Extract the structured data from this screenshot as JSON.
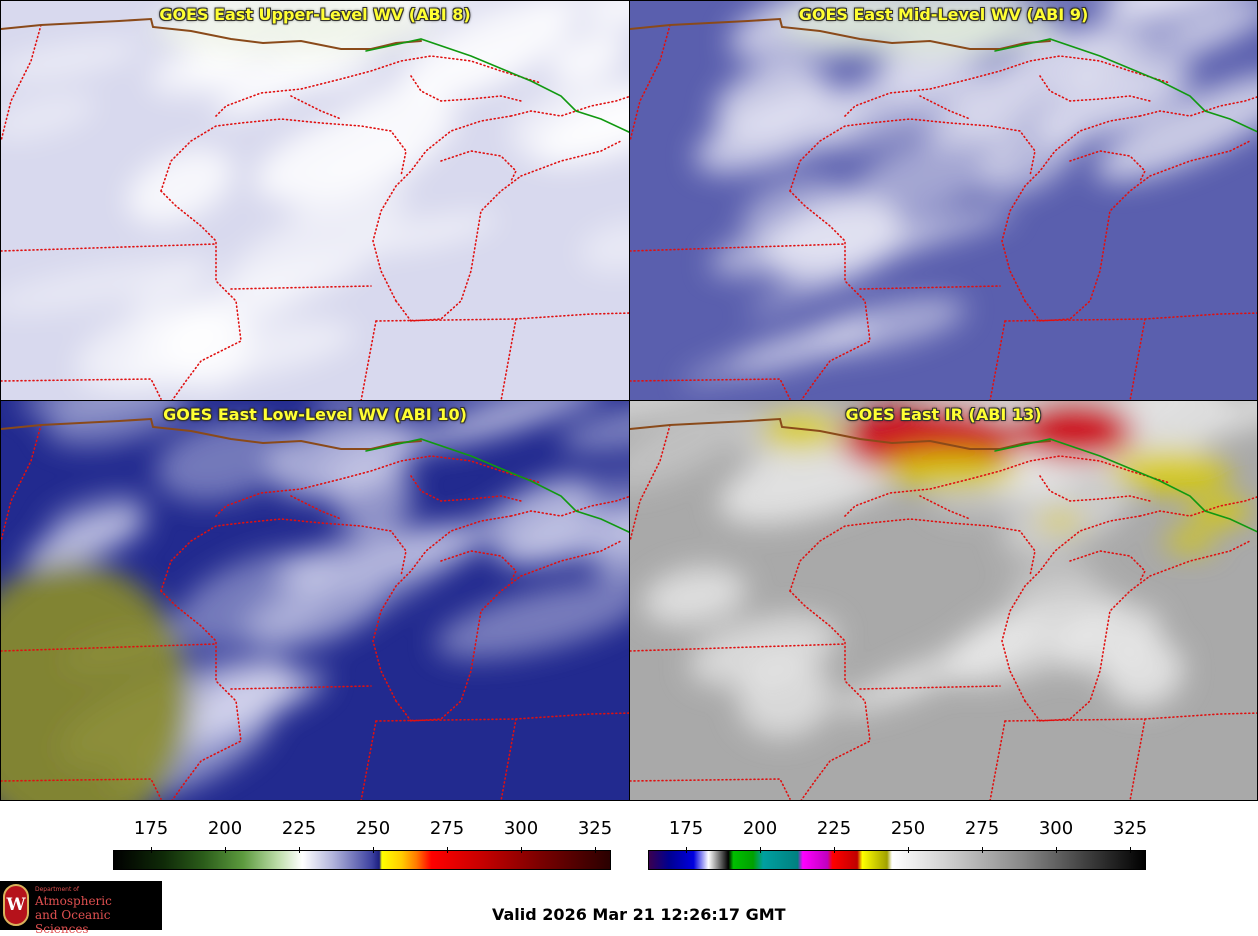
{
  "panels": [
    {
      "title": "GOES East Upper-Level WV (ABI 8)",
      "base": "#d8d9ee",
      "cloud": "#ffffff",
      "accent": "#eef3e8"
    },
    {
      "title": "GOES East Mid-Level WV (ABI 9)",
      "base": "#5a5fae",
      "cloud": "#e8e8f4",
      "accent": "#dfe9d8"
    },
    {
      "title": "GOES East Low-Level WV (ABI 10)",
      "base": "#222a8f",
      "cloud": "#d8d9ef",
      "accent": "#8c8e2a"
    },
    {
      "title": "GOES East IR (ABI 13)",
      "base": "#a9a9a9",
      "cloud": "#ececec",
      "accent": "#d9cc00"
    }
  ],
  "colorbar_wv": {
    "ticks": [
      "175",
      "200",
      "225",
      "250",
      "275",
      "300",
      "325"
    ],
    "stops": [
      "#000000",
      "#1a3d0c",
      "#3f7a27",
      "#7cb45a",
      "#ffffff",
      "#8e92cc",
      "#2b2f8f",
      "#ffff00",
      "#ff9900",
      "#ff0000",
      "#a00000",
      "#300000"
    ]
  },
  "colorbar_ir": {
    "ticks": [
      "175",
      "200",
      "225",
      "250",
      "275",
      "300",
      "325"
    ]
  },
  "logo": {
    "dept": "Department of",
    "line1": "Atmospheric",
    "line2": "and Oceanic Sciences",
    "letter": "W"
  },
  "valid_time": "Valid 2026 Mar 21 12:26:17 GMT"
}
